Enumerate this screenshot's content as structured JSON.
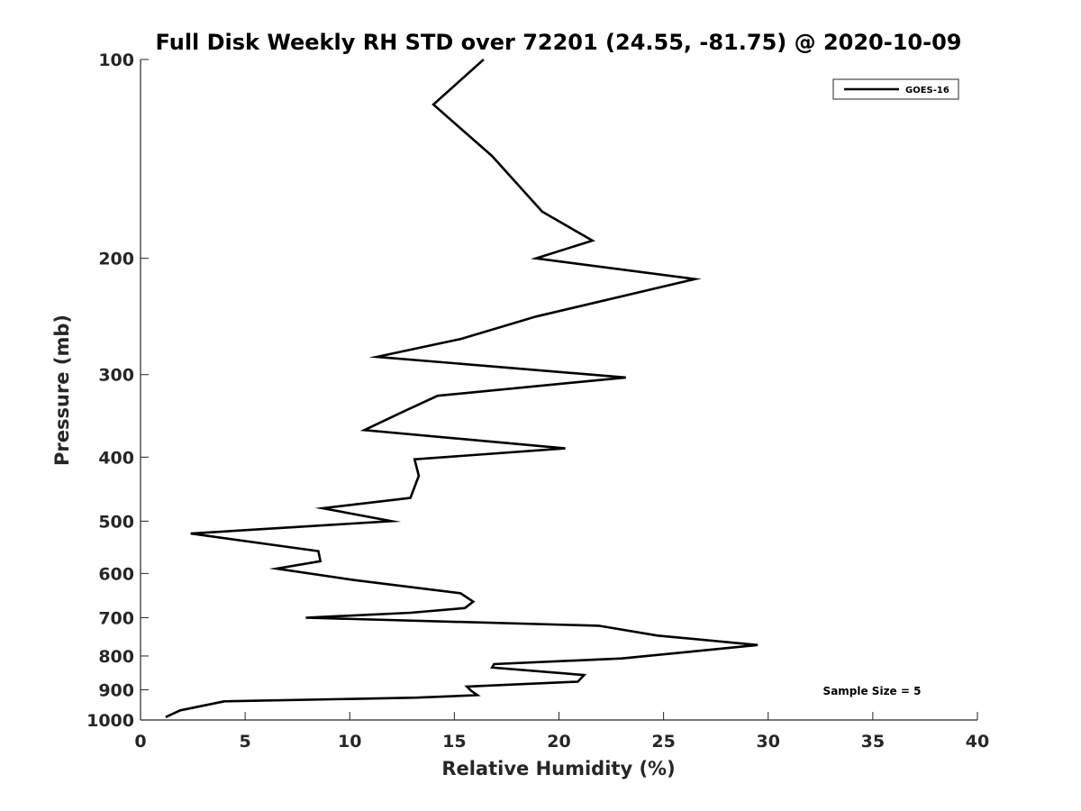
{
  "chart_data": {
    "type": "line",
    "title": "Full Disk Weekly RH STD over 72201 (24.55, -81.75) @ 2020-10-09",
    "xlabel": "Relative Humidity (%)",
    "ylabel": "Pressure (mb)",
    "xlim": [
      0,
      40
    ],
    "ylim": [
      1000,
      100
    ],
    "yscale": "log",
    "xticks": [
      0,
      5,
      10,
      15,
      20,
      25,
      30,
      35,
      40
    ],
    "xtick_labels": [
      "0",
      "5",
      "10",
      "15",
      "20",
      "25",
      "30",
      "35",
      "40"
    ],
    "yticks": [
      100,
      200,
      300,
      400,
      500,
      600,
      700,
      800,
      900,
      1000
    ],
    "ytick_labels": [
      "100",
      "200",
      "300",
      "400",
      "500",
      "600",
      "700",
      "800",
      "900",
      "1000"
    ],
    "grid": false,
    "legend": {
      "position": "top-right",
      "entries": [
        "GOES-16"
      ]
    },
    "annotation": "Sample Size = 5",
    "series": [
      {
        "name": "GOES-16",
        "color": "#000000",
        "x": [
          16.4,
          14.0,
          16.8,
          19.2,
          21.6,
          18.9,
          26.5,
          18.9,
          15.3,
          11.3,
          23.2,
          14.2,
          12.5,
          10.7,
          20.3,
          13.1,
          13.3,
          12.9,
          8.7,
          12.0,
          2.4,
          8.5,
          8.6,
          6.5,
          10.2,
          15.3,
          15.9,
          15.5,
          12.9,
          7.9,
          21.9,
          24.7,
          29.5,
          26.5,
          23.0,
          16.9,
          16.8,
          21.2,
          20.9,
          15.6,
          15.8,
          16.1,
          13.2,
          4.0,
          1.9,
          1.2
        ],
        "y": [
          100,
          117,
          140,
          170,
          188,
          200,
          215,
          245,
          265,
          282,
          303,
          323,
          342,
          364,
          388,
          403,
          427,
          461,
          478,
          500,
          522,
          555,
          575,
          590,
          614,
          643,
          662,
          677,
          688,
          700,
          720,
          745,
          770,
          787,
          807,
          823,
          833,
          855,
          875,
          890,
          903,
          917,
          925,
          937,
          967,
          990
        ]
      }
    ]
  }
}
